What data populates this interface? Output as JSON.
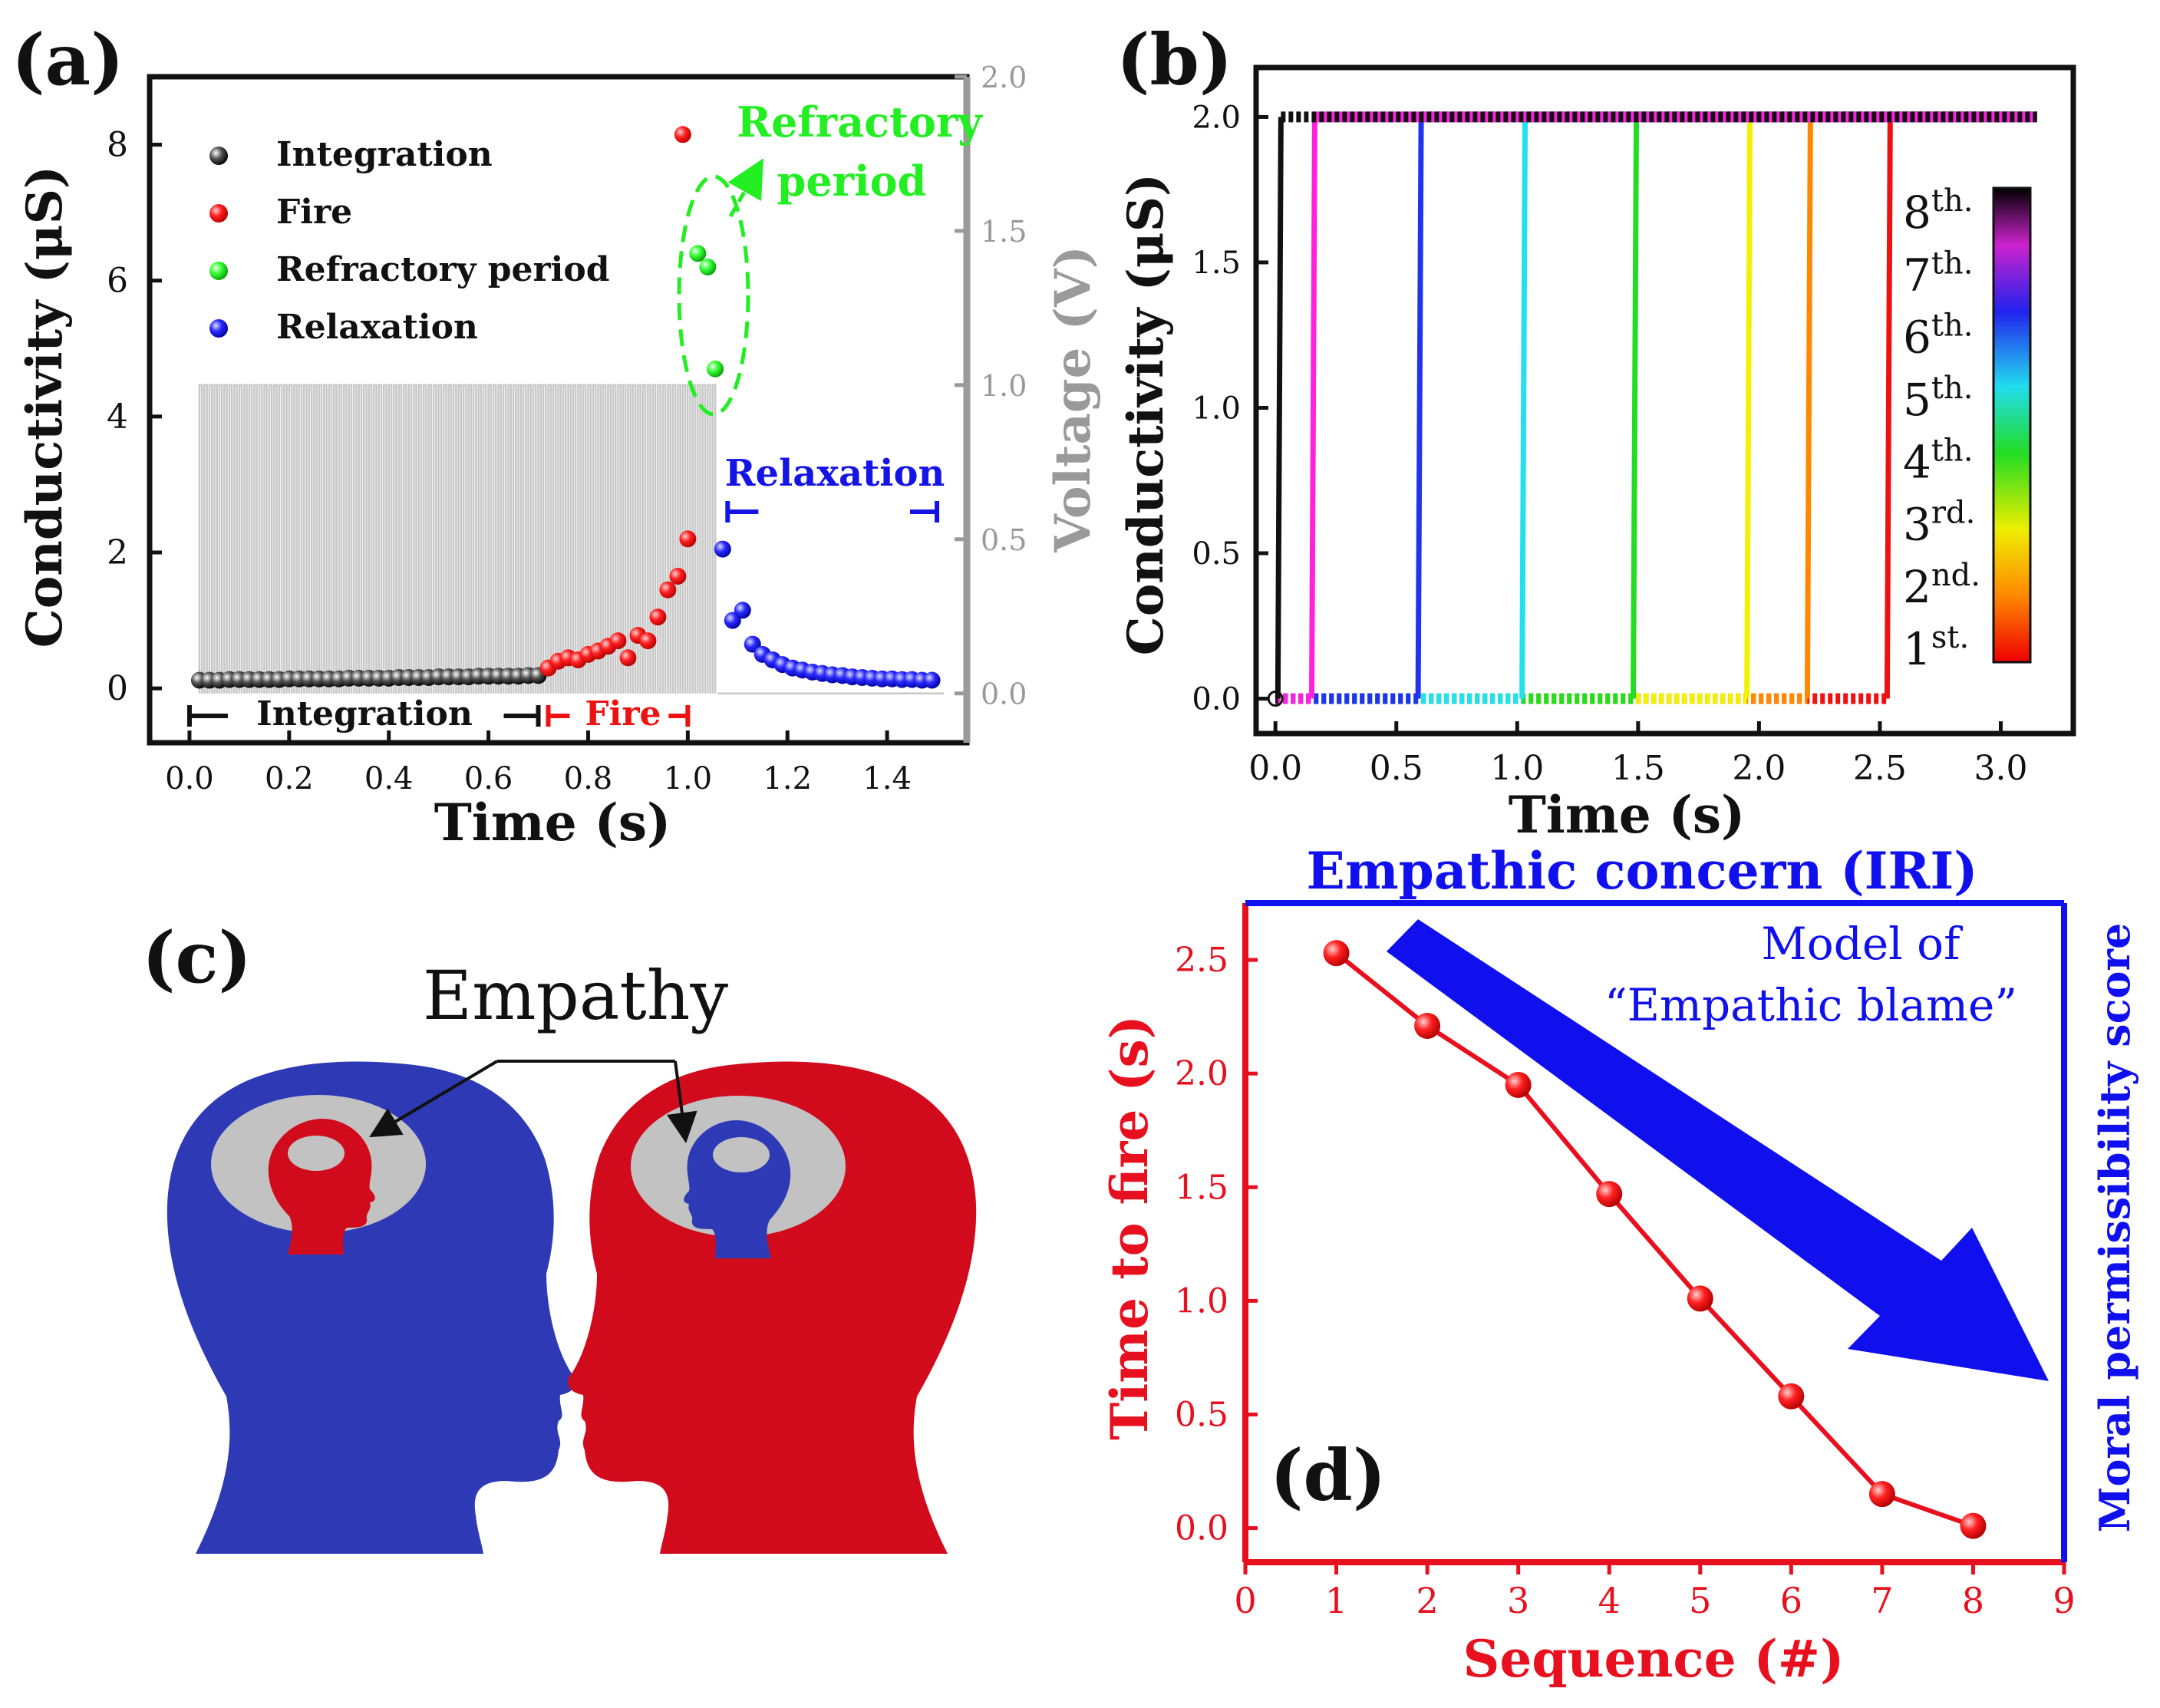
{
  "panels": {
    "a": {
      "label": "(a)"
    },
    "b": {
      "label": "(b)"
    },
    "c": {
      "label": "(c)",
      "title": "Empathy",
      "left_head_color": "#2e3ab5",
      "right_head_color": "#d10a1c"
    },
    "d": {
      "label": "(d)"
    }
  },
  "colors": {
    "black": "#111111",
    "red": "#ee1111",
    "green": "#22ee22",
    "blue": "#1414e6",
    "gray": "#9a9a9a",
    "accent_red": "#e8101e",
    "accent_blue": "#1010ee"
  },
  "chart_data": [
    {
      "id": "a",
      "type": "scatter",
      "xlabel": "Time (s)",
      "ylabel": "Conductivity (μS)",
      "y2label": "Voltage (V)",
      "xlim": [
        -0.08,
        1.56
      ],
      "ylim": [
        -0.8,
        9.0
      ],
      "y2lim": [
        -0.16,
        2.0
      ],
      "xticks": [
        "0.0",
        "0.2",
        "0.4",
        "0.6",
        "0.8",
        "1.0",
        "1.2",
        "1.4"
      ],
      "xtick_values": [
        0,
        0.2,
        0.4,
        0.6,
        0.8,
        1.0,
        1.2,
        1.4
      ],
      "yticks": [
        "0",
        "2",
        "4",
        "6",
        "8"
      ],
      "ytick_values": [
        0,
        2,
        4,
        6,
        8
      ],
      "y2ticks": [
        "0.0",
        "0.5",
        "1.0",
        "1.5",
        "2.0"
      ],
      "y2tick_values": [
        0,
        0.5,
        1.0,
        1.5,
        2.0
      ],
      "legend": [
        "Integration",
        "Fire",
        "Refractory period",
        "Relaxation"
      ],
      "series": [
        {
          "name": "Integration",
          "color": "#111111",
          "x": [
            0.02,
            0.04,
            0.06,
            0.08,
            0.1,
            0.12,
            0.14,
            0.16,
            0.18,
            0.2,
            0.22,
            0.24,
            0.26,
            0.28,
            0.3,
            0.32,
            0.34,
            0.36,
            0.38,
            0.4,
            0.42,
            0.44,
            0.46,
            0.48,
            0.5,
            0.52,
            0.54,
            0.56,
            0.58,
            0.6,
            0.62,
            0.64,
            0.66,
            0.68,
            0.7
          ],
          "y": [
            0.12,
            0.12,
            0.12,
            0.13,
            0.13,
            0.13,
            0.13,
            0.13,
            0.13,
            0.14,
            0.14,
            0.14,
            0.14,
            0.14,
            0.14,
            0.15,
            0.15,
            0.15,
            0.15,
            0.15,
            0.16,
            0.16,
            0.16,
            0.16,
            0.17,
            0.17,
            0.17,
            0.17,
            0.18,
            0.18,
            0.18,
            0.18,
            0.18,
            0.19,
            0.19
          ]
        },
        {
          "name": "Fire",
          "color": "#ee1111",
          "x": [
            0.72,
            0.74,
            0.76,
            0.78,
            0.8,
            0.82,
            0.84,
            0.86,
            0.88,
            0.9,
            0.92,
            0.94,
            0.96,
            0.98,
            1.0
          ],
          "y": [
            0.3,
            0.4,
            0.45,
            0.42,
            0.5,
            0.55,
            0.62,
            0.7,
            0.45,
            0.78,
            0.7,
            1.05,
            1.45,
            1.65,
            2.2
          ]
        },
        {
          "name": "Fire outlier",
          "color": "#ee1111",
          "x": [
            0.99
          ],
          "y": [
            8.15
          ]
        },
        {
          "name": "Refractory period",
          "color": "#22ee22",
          "x": [
            1.02,
            1.04,
            1.055
          ],
          "y": [
            6.4,
            6.2,
            4.7
          ]
        },
        {
          "name": "Relaxation",
          "color": "#1414e6",
          "x": [
            1.07,
            1.09,
            1.11,
            1.13,
            1.15,
            1.17,
            1.19,
            1.21,
            1.23,
            1.25,
            1.27,
            1.29,
            1.31,
            1.33,
            1.35,
            1.37,
            1.39,
            1.41,
            1.43,
            1.45,
            1.47,
            1.49
          ],
          "y": [
            2.05,
            1.0,
            1.15,
            0.65,
            0.5,
            0.42,
            0.35,
            0.3,
            0.27,
            0.24,
            0.22,
            0.2,
            0.19,
            0.17,
            0.16,
            0.15,
            0.14,
            0.14,
            0.13,
            0.13,
            0.12,
            0.12
          ]
        }
      ],
      "annotations": {
        "integration": "Integration",
        "fire": "Fire",
        "relaxation": "Relaxation",
        "refractory_line1": "Refractory",
        "refractory_line2": "period"
      },
      "phase_ranges": {
        "integration": [
          0.0,
          0.7
        ],
        "fire": [
          0.72,
          1.0
        ],
        "relaxation": [
          1.08,
          1.5
        ]
      },
      "voltage_pulses": {
        "t_start": 0.02,
        "t_end": 1.06,
        "high": 1.0,
        "low": 0.0,
        "period": 0.01
      }
    },
    {
      "id": "b",
      "type": "line",
      "xlabel": "Time (s)",
      "ylabel": "Conductivity (μS)",
      "xlim": [
        -0.08,
        3.3
      ],
      "ylim": [
        -0.12,
        2.17
      ],
      "xticks": [
        "0.0",
        "0.5",
        "1.0",
        "1.5",
        "2.0",
        "2.5",
        "3.0"
      ],
      "xtick_values": [
        0,
        0.5,
        1.0,
        1.5,
        2.0,
        2.5,
        3.0
      ],
      "yticks": [
        "0.0",
        "0.5",
        "1.0",
        "1.5",
        "2.0"
      ],
      "ytick_values": [
        0,
        0.5,
        1.0,
        1.5,
        2.0
      ],
      "x_end": 3.15,
      "series": [
        {
          "name": "1st.",
          "fire_time": 2.53,
          "color": "#ee1111"
        },
        {
          "name": "2nd.",
          "fire_time": 2.2,
          "color": "#ff8800"
        },
        {
          "name": "3rd.",
          "fire_time": 1.95,
          "color": "#f2f200"
        },
        {
          "name": "4th.",
          "fire_time": 1.48,
          "color": "#22dd22"
        },
        {
          "name": "5th.",
          "fire_time": 1.02,
          "color": "#22e0ee"
        },
        {
          "name": "6th.",
          "fire_time": 0.59,
          "color": "#2233ee"
        },
        {
          "name": "7th.",
          "fire_time": 0.15,
          "color": "#ff22dd"
        },
        {
          "name": "8th.",
          "fire_time": 0.01,
          "color": "#111111"
        }
      ],
      "colorbar_labels": [
        "8th.",
        "7th.",
        "6th.",
        "5th.",
        "4th.",
        "3rd.",
        "2nd.",
        "1st."
      ]
    },
    {
      "id": "d",
      "type": "line",
      "title": "Empathic concern (IRI)",
      "xlabel": "Sequence (#)",
      "ylabel": "Time to fire (s)",
      "y2label": "Moral permissibility score",
      "annotation_line1": "Model of",
      "annotation_line2": "“Empathic blame”",
      "xlim": [
        0,
        9
      ],
      "ylim": [
        -0.15,
        2.75
      ],
      "xticks": [
        "0",
        "1",
        "2",
        "3",
        "4",
        "5",
        "6",
        "7",
        "8",
        "9"
      ],
      "xtick_values": [
        0,
        1,
        2,
        3,
        4,
        5,
        6,
        7,
        8,
        9
      ],
      "yticks": [
        "0.0",
        "0.5",
        "1.0",
        "1.5",
        "2.0",
        "2.5"
      ],
      "ytick_values": [
        0,
        0.5,
        1.0,
        1.5,
        2.0,
        2.5
      ],
      "x": [
        1,
        2,
        3,
        4,
        5,
        6,
        7,
        8
      ],
      "y": [
        2.53,
        2.21,
        1.95,
        1.47,
        1.01,
        0.58,
        0.15,
        0.01
      ],
      "color": "#e8101e"
    }
  ]
}
